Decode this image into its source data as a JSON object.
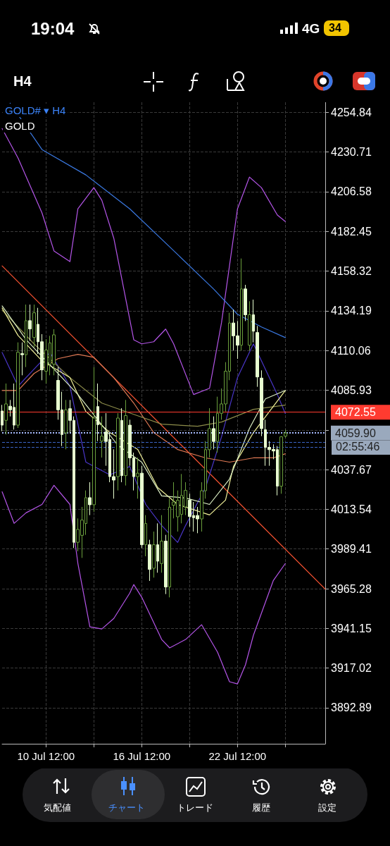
{
  "chart_data": {
    "type": "candlestick",
    "title": "GOLD# ▾ H4",
    "subtitle": "GOLD",
    "categories": [
      null,
      null,
      null,
      null,
      null,
      null,
      null,
      null,
      null,
      null,
      null,
      "10 Jul 12:00",
      null,
      null,
      null,
      null,
      null,
      null,
      null,
      null,
      null,
      null,
      null,
      null,
      null,
      null,
      null,
      null,
      null,
      null,
      null,
      null,
      null,
      null,
      null,
      "16 Jul 12:00",
      null,
      null,
      null,
      null,
      null,
      null,
      null,
      null,
      null,
      null,
      null,
      null,
      null,
      null,
      null,
      null,
      null,
      null,
      null,
      null,
      null,
      null,
      null,
      "22 Jul 12:00",
      null,
      null,
      null,
      null,
      null,
      null,
      null,
      null,
      null,
      null,
      null,
      null,
      null,
      null,
      null,
      null,
      null,
      null,
      null,
      null,
      null,
      null
    ],
    "ohlc": [
      [
        4073.3,
        4077,
        4061,
        4064.7
      ],
      [
        4067.6,
        4090,
        4059,
        4077.6
      ],
      [
        4076.2,
        4080,
        4070,
        4074.0
      ],
      [
        4075.5,
        4090,
        4062,
        4064.7
      ],
      [
        4064.7,
        4115,
        4063,
        4109
      ],
      [
        4108.2,
        4115,
        4095,
        4107.5
      ],
      [
        4107.5,
        4138,
        4100,
        4128.2
      ],
      [
        4128.2,
        4138,
        4116,
        4123.2
      ],
      [
        4118,
        4138,
        4112,
        4133
      ],
      [
        4126,
        4136,
        4108,
        4115.4
      ],
      [
        4115.4,
        4120,
        4092,
        4098.3
      ],
      [
        4097.5,
        4117,
        4090,
        4110.4
      ],
      [
        4101.8,
        4119,
        4095,
        4114.7
      ],
      [
        4101.8,
        4123,
        4095,
        4119.6
      ],
      [
        4091.9,
        4100,
        4068,
        4074
      ],
      [
        4074,
        4085,
        4052,
        4059
      ],
      [
        4060,
        4080,
        4050,
        4074
      ],
      [
        4074.7,
        4080,
        4060,
        4067.6
      ],
      [
        4067.6,
        4070,
        3990,
        3993.5
      ],
      [
        3993.5,
        4008,
        3988,
        4001.3
      ],
      [
        3997.7,
        4015,
        3984,
        4007
      ],
      [
        4004.9,
        4025,
        3998,
        4020.6
      ],
      [
        4020.6,
        4030,
        4010,
        4016.3
      ],
      [
        4016.3,
        4100,
        4012,
        4069
      ],
      [
        4076,
        4090,
        4055,
        4065
      ],
      [
        4055,
        4070,
        4045,
        4058
      ],
      [
        4060.5,
        4072,
        4040,
        4054.8
      ],
      [
        4056,
        4060,
        4030,
        4033.4
      ],
      [
        4033.4,
        4050,
        4020,
        4031.3
      ],
      [
        4033.4,
        4072,
        4025,
        4069
      ],
      [
        4067.6,
        4075,
        4030,
        4034
      ],
      [
        4034,
        4080,
        4028,
        4070.5
      ],
      [
        4064.7,
        4068,
        4040,
        4044.8
      ],
      [
        4044.8,
        4048,
        4025,
        4033.4
      ],
      [
        4033.4,
        4045,
        4020,
        4035.5
      ],
      [
        4035.5,
        4040,
        3990,
        3992
      ],
      [
        3992,
        4010,
        3985,
        4004.9
      ],
      [
        3992,
        3995,
        3970,
        3977
      ],
      [
        3977.7,
        4000,
        3972,
        3992
      ],
      [
        3992,
        4005,
        3975,
        3982
      ],
      [
        3980.6,
        4010,
        3975,
        3994.2
      ],
      [
        3994.2,
        3998,
        3962,
        3966.3
      ],
      [
        3966.3,
        4020,
        3960,
        4014.8
      ],
      [
        4016,
        4030,
        4008,
        4018
      ],
      [
        4009,
        4025,
        4000,
        4019
      ],
      [
        4010.4,
        4035,
        4005,
        4022
      ],
      [
        4015,
        4030,
        4010,
        4025
      ],
      [
        4019.1,
        4023,
        4003,
        4009.1
      ],
      [
        4009.8,
        4018,
        4000,
        4008.4
      ],
      [
        4009.8,
        4015,
        3999,
        4007.7
      ],
      [
        4007.7,
        4030,
        4000,
        4024.8
      ],
      [
        4024.8,
        4055,
        4020,
        4049.8
      ],
      [
        4049.8,
        4075,
        4045,
        4062.6
      ],
      [
        4062.6,
        4070,
        4050,
        4054.8
      ],
      [
        4054.8,
        4082,
        4048,
        4071.9
      ],
      [
        4071.9,
        4087,
        4068,
        4077.6
      ],
      [
        4077.6,
        4103,
        4073,
        4097.5
      ],
      [
        4097.5,
        4133,
        4092,
        4126.8
      ],
      [
        4126.8,
        4135,
        4110,
        4119
      ],
      [
        4119,
        4128,
        4105,
        4113.3
      ],
      [
        4113.3,
        4166,
        4110,
        4147.5
      ],
      [
        4147.5,
        4150,
        4128,
        4131.8
      ],
      [
        4113.3,
        4140,
        4110,
        4131.8
      ],
      [
        4131.8,
        4141,
        4115,
        4121.8
      ],
      [
        4121,
        4125,
        4088,
        4094
      ],
      [
        4093.3,
        4098,
        4058,
        4062.6
      ],
      [
        4061.9,
        4068,
        4040,
        4051.2
      ],
      [
        4051.2,
        4055,
        4040,
        4049.8
      ],
      [
        4050,
        4053,
        4044,
        4049
      ],
      [
        4049.8,
        4052,
        4022,
        4027.6
      ],
      [
        4027.6,
        4058,
        4023,
        4057.6
      ],
      [
        4058,
        4062,
        4057,
        4059.9
      ],
      null,
      null,
      null,
      null,
      null,
      null,
      null,
      null,
      null,
      null
    ],
    "colors": [
      "#e8ffd0",
      "#6a9e3c",
      "#e8ffd0",
      "#e8ffd0",
      "#6a9e3c",
      "#e8ffd0",
      "#6a9e3c",
      "#e8ffd0",
      "#6a9e3c",
      "#e8ffd0",
      "#e8ffd0",
      "#6a9e3c",
      "#6a9e3c",
      "#6a9e3c",
      "#e8ffd0",
      "#e8ffd0",
      "#6a9e3c",
      "#e8ffd0",
      "#e8ffd0",
      "#6a9e3c",
      "#6a9e3c",
      "#6a9e3c",
      "#e8ffd0",
      "#6a9e3c",
      "#e8ffd0",
      "#6a9e3c",
      "#e8ffd0",
      "#e8ffd0",
      "#e8ffd0",
      "#6a9e3c",
      "#e8ffd0",
      "#6a9e3c",
      "#e8ffd0",
      "#e8ffd0",
      "#6a9e3c",
      "#e8ffd0",
      "#6a9e3c",
      "#e8ffd0",
      "#6a9e3c",
      "#e8ffd0",
      "#6a9e3c",
      "#e8ffd0",
      "#6a9e3c",
      "#6a9e3c",
      "#6a9e3c",
      "#6a9e3c",
      "#6a9e3c",
      "#e8ffd0",
      "#e8ffd0",
      "#e8ffd0",
      "#6a9e3c",
      "#6a9e3c",
      "#6a9e3c",
      "#e8ffd0",
      "#6a9e3c",
      "#6a9e3c",
      "#6a9e3c",
      "#6a9e3c",
      "#e8ffd0",
      "#e8ffd0",
      "#6a9e3c",
      "#e8ffd0",
      "#6a9e3c",
      "#e8ffd0",
      "#e8ffd0",
      "#e8ffd0",
      "#e8ffd0",
      "#e8ffd0",
      "#e8ffd0",
      "#e8ffd0",
      "#6a9e3c",
      "#6a9e3c",
      null,
      null,
      null,
      null,
      null,
      null,
      null,
      null,
      null,
      null
    ],
    "series": [
      {
        "type": "line",
        "color": "#b455e8",
        "values": [
          4245,
          null,
          null,
          null,
          4227,
          null,
          null,
          null,
          null,
          null,
          4193.7,
          null,
          null,
          4170.6,
          null,
          null,
          null,
          4164.1,
          null,
          4196.2,
          null,
          null,
          null,
          4209.1,
          null,
          4201.4,
          null,
          null,
          4178.3,
          null,
          null,
          null,
          null,
          4116.6,
          null,
          4114.1,
          null,
          null,
          4115.4,
          null,
          null,
          4123.1,
          null,
          4114.1,
          null,
          null,
          null,
          null,
          4083.3,
          null,
          null,
          null,
          4087.1,
          null,
          null,
          4127,
          null,
          null,
          null,
          4196.2,
          null,
          null,
          4215.5,
          null,
          null,
          4209.1,
          null,
          null,
          null,
          4192.4,
          null,
          4188.5,
          null,
          null,
          null,
          null,
          null,
          null,
          null,
          null,
          null,
          null
        ]
      },
      {
        "type": "line",
        "color": "#b455e8",
        "values": [
          4024.2,
          null,
          null,
          4005,
          null,
          null,
          4011.4,
          null,
          null,
          null,
          4016.5,
          null,
          null,
          4028.1,
          null,
          null,
          null,
          4016.5,
          null,
          3980.6,
          null,
          null,
          3942.1,
          null,
          null,
          3940.8,
          null,
          null,
          3947.2,
          null,
          null,
          null,
          3962.6,
          3967.8,
          null,
          3960.1,
          null,
          null,
          null,
          null,
          3934.4,
          null,
          3929.3,
          null,
          null,
          null,
          3934.4,
          null,
          null,
          null,
          3943.4,
          null,
          null,
          null,
          3926.7,
          null,
          null,
          3908.7,
          null,
          3907.4,
          null,
          3919,
          null,
          3937,
          null,
          null,
          null,
          null,
          3970.3,
          null,
          null,
          3980.6,
          null,
          null,
          null,
          null,
          null,
          null,
          null,
          null,
          null,
          null
        ]
      },
      {
        "type": "line",
        "color": "#3a78e0",
        "values": [
          null,
          null,
          4260.4,
          null,
          null,
          null,
          null,
          null,
          null,
          null,
          4232.2,
          null,
          null,
          null,
          null,
          null,
          null,
          null,
          null,
          null,
          null,
          4216.8,
          null,
          null,
          null,
          null,
          null,
          null,
          null,
          null,
          null,
          null,
          4196.2,
          null,
          null,
          null,
          null,
          null,
          null,
          null,
          null,
          null,
          4173.1,
          null,
          null,
          null,
          null,
          null,
          null,
          null,
          null,
          null,
          null,
          4147.5,
          null,
          null,
          null,
          null,
          null,
          4132.1,
          null,
          null,
          null,
          null,
          null,
          4124.4,
          null,
          null,
          null,
          null,
          null,
          4117.9,
          null,
          null,
          null,
          null,
          null,
          null,
          null,
          null,
          null,
          null
        ]
      },
      {
        "type": "line",
        "color": "#ff5533",
        "values": [
          4161.5,
          null,
          null,
          null,
          null,
          null,
          null,
          null,
          null,
          null,
          null,
          null,
          null,
          null,
          null,
          null,
          null,
          null,
          null,
          null,
          null,
          null,
          null,
          null,
          null,
          null,
          null,
          null,
          null,
          null,
          null,
          null,
          null,
          null,
          null,
          null,
          null,
          null,
          null,
          null,
          null,
          null,
          null,
          null,
          null,
          null,
          null,
          null,
          null,
          null,
          null,
          null,
          null,
          null,
          null,
          null,
          null,
          null,
          null,
          null,
          null,
          null,
          null,
          null,
          null,
          null,
          null,
          null,
          null,
          null,
          null,
          null,
          null,
          null,
          null,
          null,
          null,
          null,
          null,
          null,
          null,
          3965.0
        ]
      },
      {
        "type": "line",
        "color": "#4a36c8",
        "values": [
          4108.9,
          null,
          null,
          null,
          4088.4,
          null,
          null,
          null,
          4098.7,
          null,
          null,
          null,
          4108.9,
          null,
          null,
          null,
          null,
          4088.4,
          null,
          null,
          null,
          4042.2,
          null,
          null,
          null,
          null,
          null,
          4034.5,
          null,
          null,
          null,
          null,
          4039.6,
          null,
          null,
          null,
          4016.5,
          null,
          null,
          null,
          4003.7,
          null,
          null,
          null,
          3993.4,
          null,
          4003.7,
          null,
          null,
          null,
          null,
          4026.8,
          null,
          null,
          null,
          4057.6,
          null,
          null,
          null,
          4093.6,
          null,
          null,
          null,
          4114.1,
          null,
          null,
          4098.7,
          null,
          null,
          4083.3,
          null,
          4071.7,
          null,
          null,
          null,
          null,
          null,
          null,
          null,
          null,
          null,
          null
        ]
      },
      {
        "type": "line",
        "color": "#e07a55",
        "values": [
          4085.8,
          null,
          null,
          null,
          4085.8,
          null,
          null,
          null,
          4096.1,
          null,
          null,
          null,
          null,
          null,
          4105.1,
          null,
          null,
          null,
          null,
          4107.7,
          null,
          null,
          null,
          4105.9,
          null,
          null,
          null,
          null,
          4093.6,
          null,
          null,
          null,
          null,
          4078.1,
          null,
          null,
          null,
          null,
          4060.2,
          null,
          null,
          null,
          null,
          null,
          4049.9,
          null,
          null,
          null,
          null,
          null,
          null,
          4044.8,
          null,
          null,
          null,
          null,
          null,
          4042.2,
          null,
          null,
          null,
          null,
          null,
          4044.8,
          null,
          null,
          null,
          null,
          4044.8,
          null,
          null,
          4047.3,
          null,
          null,
          null,
          null,
          null,
          null,
          null,
          null,
          null,
          null
        ]
      },
      {
        "type": "line",
        "color": "#8c8c4a",
        "values": [
          4134.6,
          null,
          null,
          null,
          null,
          null,
          null,
          null,
          4114.1,
          null,
          null,
          null,
          null,
          null,
          null,
          null,
          null,
          4093.6,
          null,
          null,
          null,
          null,
          null,
          null,
          null,
          4078.1,
          null,
          null,
          null,
          null,
          null,
          null,
          null,
          null,
          4070.4,
          null,
          null,
          null,
          null,
          null,
          4065.3,
          null,
          null,
          null,
          null,
          null,
          null,
          null,
          null,
          4064,
          null,
          null,
          null,
          null,
          null,
          4066.6,
          null,
          null,
          null,
          null,
          null,
          null,
          null,
          4074.3,
          null,
          null,
          null,
          null,
          null,
          null,
          null,
          4076.9,
          null,
          null,
          null,
          null,
          null,
          null,
          null,
          null,
          null,
          null
        ]
      },
      {
        "type": "line",
        "color": "#f2f29a",
        "values": [
          4135.9,
          null,
          null,
          null,
          4119.2,
          null,
          null,
          null,
          null,
          null,
          4103.8,
          null,
          null,
          null,
          null,
          null,
          null,
          4093.6,
          null,
          null,
          null,
          4073,
          null,
          null,
          null,
          null,
          null,
          4060.2,
          null,
          null,
          null,
          null,
          null,
          null,
          4049.9,
          null,
          null,
          null,
          null,
          4026.8,
          null,
          null,
          null,
          null,
          4016.5,
          null,
          null,
          null,
          null,
          null,
          null,
          null,
          4010.1,
          null,
          null,
          null,
          4019.1,
          null,
          4039.6,
          null,
          null,
          null,
          null,
          4060.2,
          null,
          null,
          null,
          null,
          null,
          null,
          null,
          4085.8,
          null,
          null,
          null,
          null,
          null,
          null,
          null,
          null,
          null,
          null
        ]
      },
      {
        "type": "line",
        "color": "#dcefc4",
        "values": [
          4137.2,
          null,
          null,
          null,
          null,
          null,
          4116.7,
          null,
          null,
          null,
          null,
          null,
          null,
          4098.7,
          null,
          null,
          null,
          null,
          null,
          4083.3,
          null,
          null,
          null,
          null,
          4067.9,
          null,
          null,
          null,
          null,
          4052.5,
          null,
          null,
          null,
          null,
          null,
          4042.2,
          null,
          null,
          null,
          null,
          4021.7,
          null,
          null,
          null,
          null,
          null,
          4020.4,
          null,
          null,
          null,
          null,
          null,
          4016.5,
          null,
          null,
          null,
          null,
          4031.9,
          null,
          null,
          null,
          null,
          4062.7,
          null,
          null,
          null,
          4080.7,
          null,
          null,
          null,
          null,
          4085.8,
          null,
          null,
          null,
          null,
          null,
          null,
          null,
          null,
          null,
          null
        ]
      }
    ],
    "ref_lines": [
      {
        "axis": "y",
        "value": 4072.55,
        "label": "4072.55",
        "color": "#ff3b30",
        "line_style": "solid"
      },
      {
        "axis": "y",
        "value": 4059.9,
        "label": "4059.90",
        "color": "#a8bcff",
        "line_style": "dotted"
      },
      {
        "axis": "y",
        "value": 4054.2,
        "color": "#3b63c4",
        "line_style": "dashed"
      },
      {
        "axis": "y",
        "value": 4051.2,
        "color": "#3b63c4",
        "line_style": "dashed"
      }
    ],
    "ylim": [
      3871,
      4261
    ],
    "yticks": [
      4254.84,
      4230.71,
      4206.58,
      4182.45,
      4158.32,
      4134.19,
      4110.06,
      4085.93,
      {
        "value": 4061.8,
        "label": null
      },
      4037.67,
      4013.54,
      3989.41,
      3965.28,
      3941.15,
      3917.02,
      3892.89
    ],
    "grid": true,
    "marker": "none",
    "line_style": "solid",
    "annotations": [
      "19:04",
      "4G",
      "34",
      "H4",
      "02:55:46",
      "気配値",
      "チャート",
      "トレード",
      "履歴",
      "設定"
    ]
  }
}
